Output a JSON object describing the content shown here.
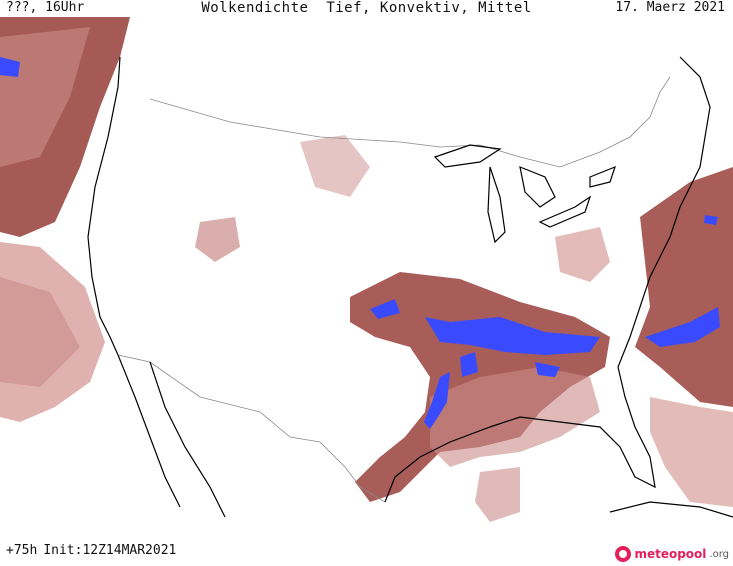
{
  "header": {
    "left": "???, 16Uhr",
    "title": "Wolkendichte  Tief, Konvektiv, Mittel",
    "date": "17. Maerz 2021"
  },
  "footer": {
    "lead": "+75h",
    "init": "Init:12Z14MAR2021"
  },
  "logo": {
    "brand": "meteopool",
    "tld": ".org"
  },
  "legend_colors": {
    "light_cloud": "#e2b8b6",
    "medium_cloud": "#b46a68",
    "dense_cloud": "#8c3a36",
    "convective": "#3a4bff",
    "coastline": "#000000",
    "border": "#8a8a8a"
  }
}
